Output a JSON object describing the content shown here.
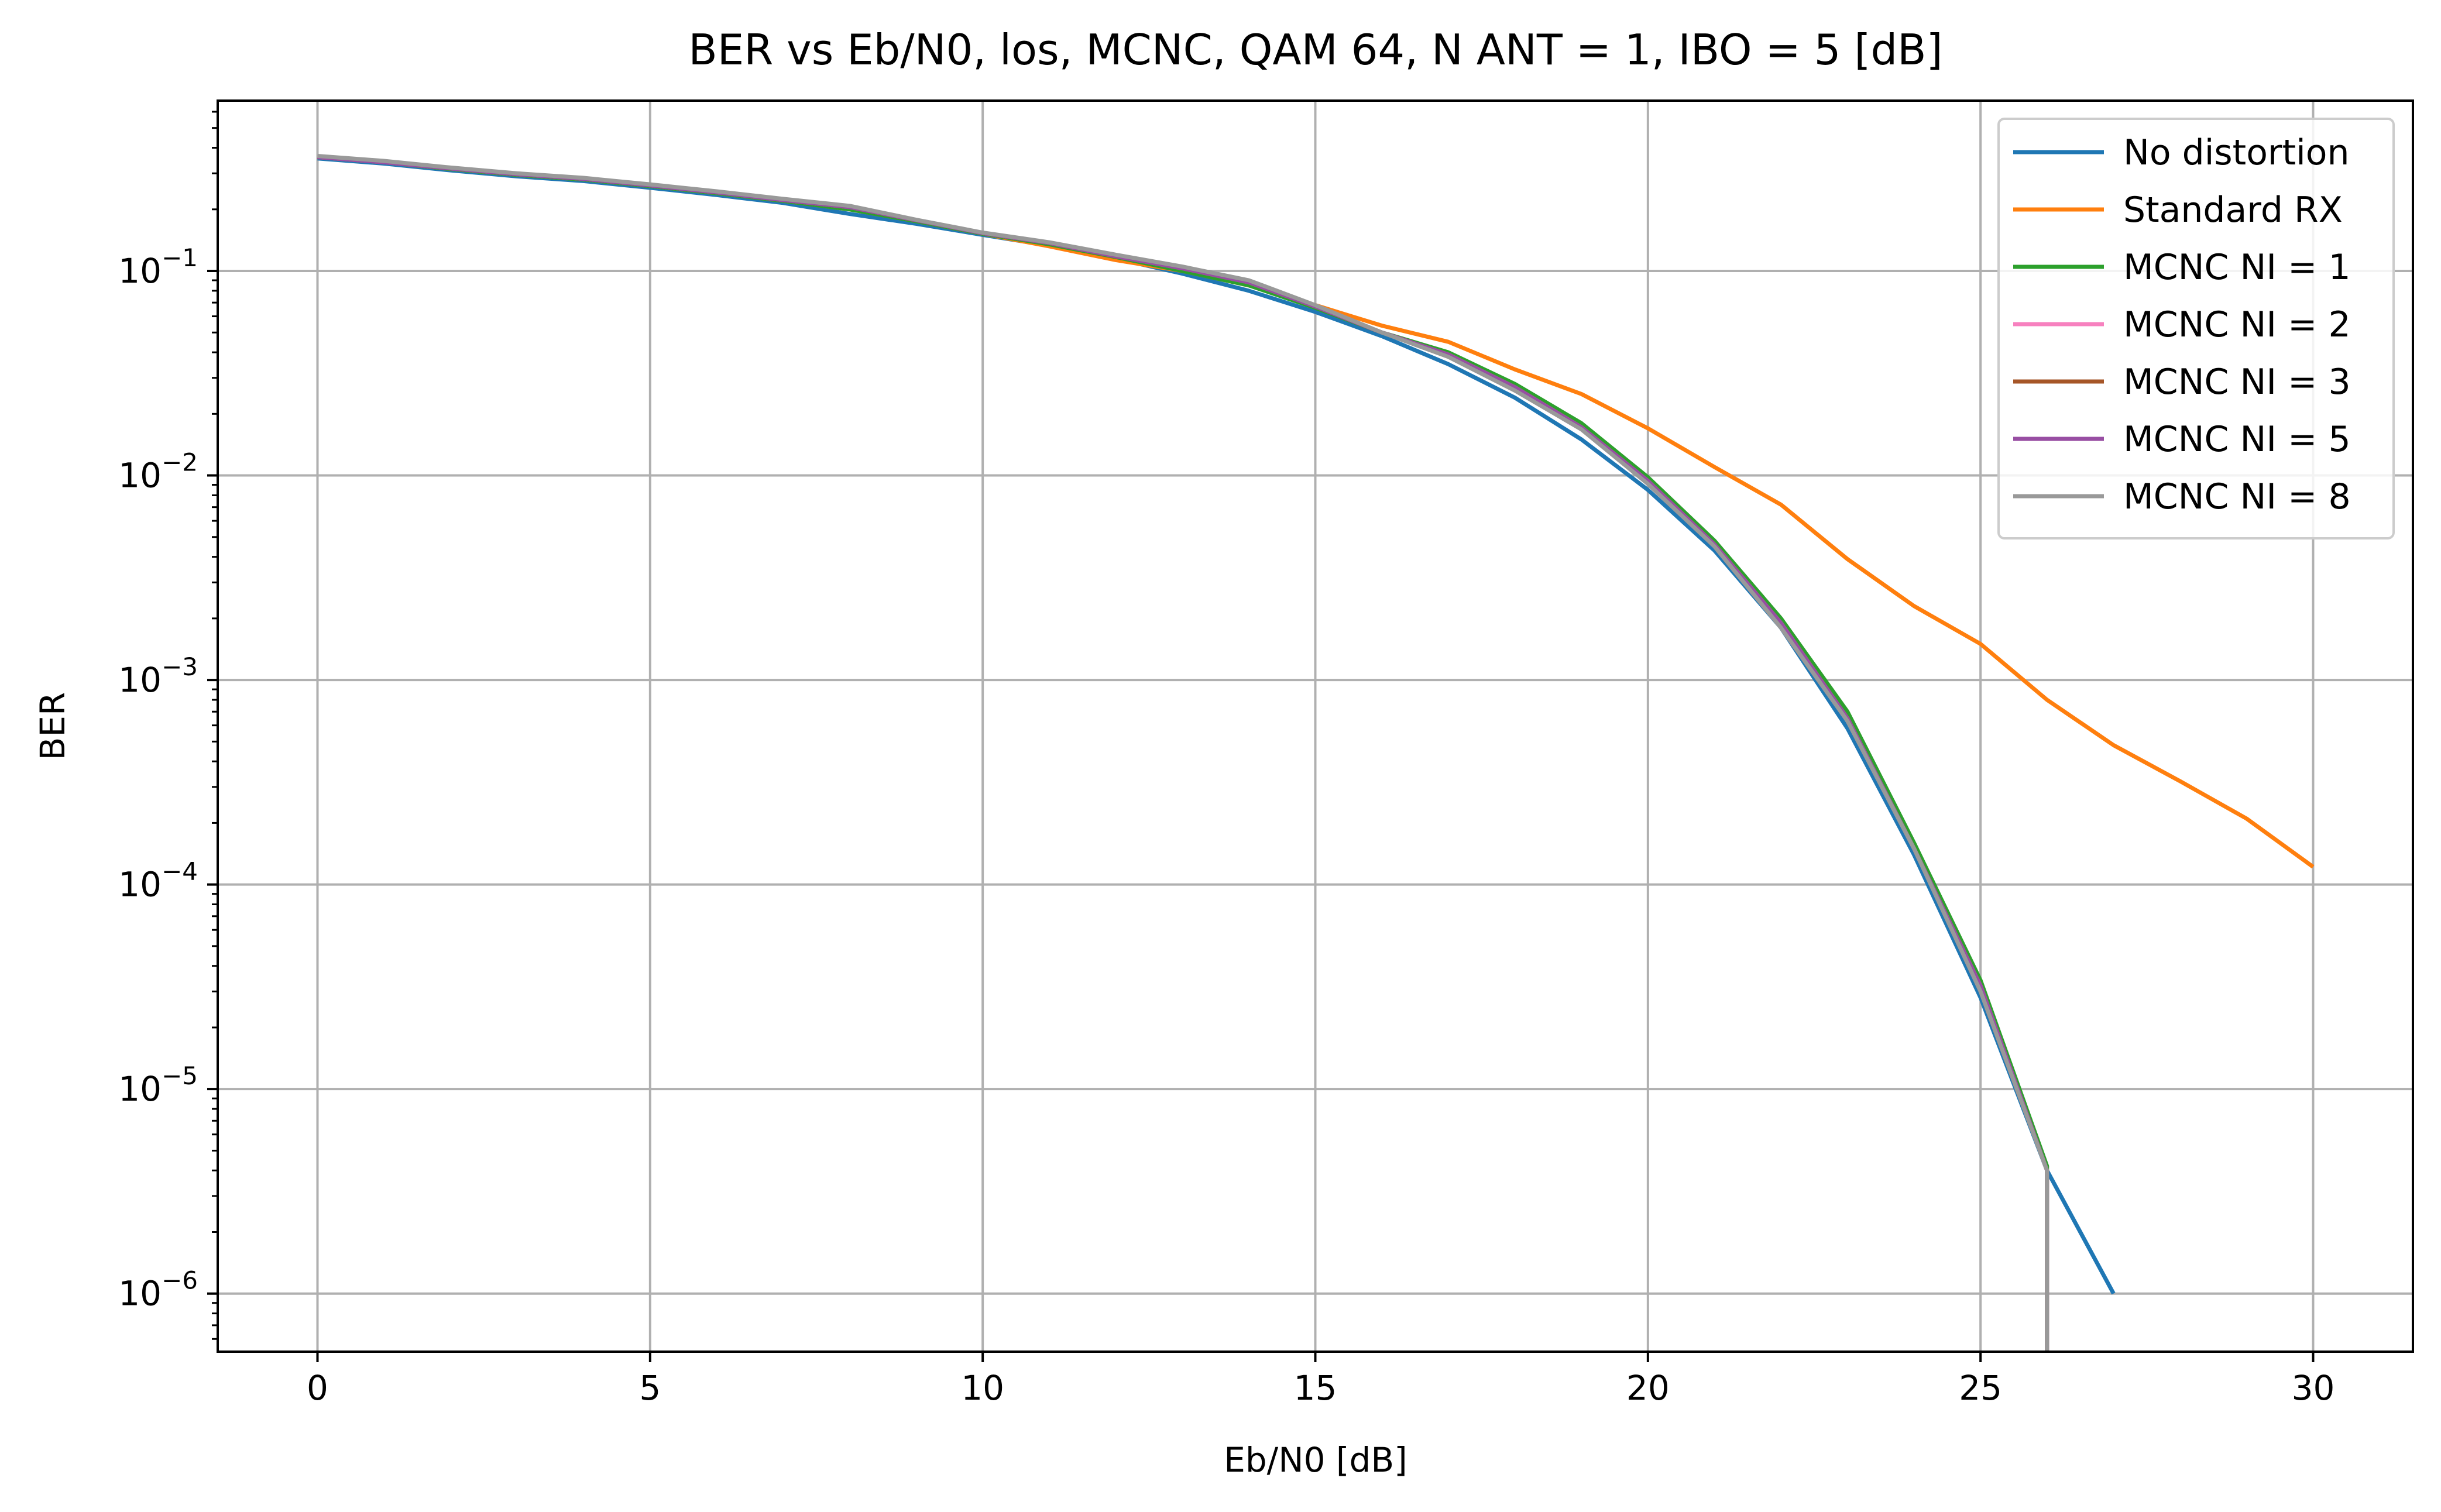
{
  "chart_data": {
    "type": "line",
    "title": "BER vs Eb/N0, los, MCNC, QAM 64, N ANT = 1, IBO = 5 [dB]",
    "xlabel": "Eb/N0 [dB]",
    "ylabel": "BER",
    "y_scale": "log",
    "xlim": [
      -1.5,
      31.5
    ],
    "ylim": [
      5.2e-07,
      0.68
    ],
    "x_ticks": [
      0,
      5,
      10,
      15,
      20,
      25,
      30
    ],
    "y_ticks": [
      {
        "value": 0.1,
        "base": "10",
        "exp": "−1"
      },
      {
        "value": 0.01,
        "base": "10",
        "exp": "−2"
      },
      {
        "value": 0.001,
        "base": "10",
        "exp": "−3"
      },
      {
        "value": 0.0001,
        "base": "10",
        "exp": "−4"
      },
      {
        "value": 1e-05,
        "base": "10",
        "exp": "−5"
      },
      {
        "value": 1e-06,
        "base": "10",
        "exp": "−6"
      }
    ],
    "grid": true,
    "legend_position": "top-right",
    "series": [
      {
        "name": "No distortion",
        "color": "#1f77b4",
        "x": [
          0,
          1,
          2,
          3,
          4,
          5,
          6,
          7,
          8,
          9,
          10,
          11,
          12,
          13,
          14,
          15,
          16,
          17,
          18,
          19,
          20,
          21,
          22,
          23,
          24,
          25,
          26,
          27
        ],
        "y": [
          0.355,
          0.335,
          0.31,
          0.29,
          0.275,
          0.255,
          0.235,
          0.215,
          0.19,
          0.17,
          0.15,
          0.133,
          0.115,
          0.097,
          0.08,
          0.063,
          0.048,
          0.035,
          0.024,
          0.015,
          0.0085,
          0.0043,
          0.0018,
          0.00058,
          0.00014,
          2.8e-05,
          4e-06,
          1e-06
        ]
      },
      {
        "name": "Standard RX",
        "color": "#ff7f0e",
        "x": [
          0,
          1,
          2,
          3,
          4,
          5,
          6,
          7,
          8,
          9,
          10,
          11,
          12,
          13,
          14,
          15,
          16,
          17,
          18,
          19,
          20,
          21,
          22,
          23,
          24,
          25,
          26,
          27,
          28,
          29,
          30
        ],
        "y": [
          0.36,
          0.34,
          0.315,
          0.295,
          0.28,
          0.26,
          0.24,
          0.22,
          0.2,
          0.175,
          0.152,
          0.132,
          0.113,
          0.1,
          0.085,
          0.068,
          0.054,
          0.045,
          0.033,
          0.025,
          0.017,
          0.011,
          0.0072,
          0.0039,
          0.0023,
          0.0015,
          0.0008,
          0.00048,
          0.00032,
          0.00021,
          0.000122
        ]
      },
      {
        "name": "MCNC NI = 1",
        "color": "#2ca02c",
        "x": [
          0,
          1,
          2,
          3,
          4,
          5,
          6,
          7,
          8,
          9,
          10,
          11,
          12,
          13,
          14,
          15,
          16,
          17,
          18,
          19,
          20,
          21,
          22,
          23,
          24,
          25,
          26,
          26
        ],
        "y": [
          0.36,
          0.34,
          0.315,
          0.295,
          0.28,
          0.26,
          0.24,
          0.22,
          0.2,
          0.175,
          0.152,
          0.135,
          0.117,
          0.1,
          0.085,
          0.066,
          0.05,
          0.04,
          0.028,
          0.018,
          0.0098,
          0.0048,
          0.002,
          0.0007,
          0.00016,
          3.4e-05,
          4.2e-06,
          4e-07
        ]
      },
      {
        "name": "MCNC NI = 2",
        "color": "#f781bf",
        "x": [
          0,
          1,
          2,
          3,
          4,
          5,
          6,
          7,
          8,
          9,
          10,
          11,
          12,
          13,
          14,
          15,
          16,
          17,
          18,
          19,
          20,
          21,
          22,
          23,
          24,
          25,
          26,
          26
        ],
        "y": [
          0.36,
          0.34,
          0.317,
          0.297,
          0.282,
          0.262,
          0.242,
          0.222,
          0.205,
          0.177,
          0.153,
          0.137,
          0.118,
          0.103,
          0.088,
          0.067,
          0.05,
          0.039,
          0.027,
          0.0172,
          0.0094,
          0.0046,
          0.0019,
          0.00065,
          0.00015,
          3.2e-05,
          4e-06,
          4e-07
        ]
      },
      {
        "name": "MCNC NI = 3",
        "color": "#a65628",
        "x": [
          0,
          1,
          2,
          3,
          4,
          5,
          6,
          7,
          8,
          9,
          10,
          11,
          12,
          13,
          14,
          15,
          16,
          17,
          18,
          19,
          20,
          21,
          22,
          23,
          24,
          25,
          26,
          26
        ],
        "y": [
          0.36,
          0.34,
          0.317,
          0.297,
          0.282,
          0.262,
          0.242,
          0.222,
          0.205,
          0.177,
          0.153,
          0.137,
          0.118,
          0.103,
          0.088,
          0.067,
          0.05,
          0.039,
          0.027,
          0.0172,
          0.0094,
          0.0046,
          0.0019,
          0.00065,
          0.00015,
          3.2e-05,
          4e-06,
          4e-07
        ]
      },
      {
        "name": "MCNC NI = 5",
        "color": "#984ea3",
        "x": [
          0,
          1,
          2,
          3,
          4,
          5,
          6,
          7,
          8,
          9,
          10,
          11,
          12,
          13,
          14,
          15,
          16,
          17,
          18,
          19,
          20,
          21,
          22,
          23,
          24,
          25,
          26,
          26
        ],
        "y": [
          0.36,
          0.34,
          0.317,
          0.297,
          0.282,
          0.262,
          0.242,
          0.222,
          0.205,
          0.177,
          0.153,
          0.137,
          0.118,
          0.103,
          0.088,
          0.067,
          0.05,
          0.039,
          0.027,
          0.0172,
          0.0094,
          0.0046,
          0.0019,
          0.00065,
          0.00015,
          3.2e-05,
          4e-06,
          4e-07
        ]
      },
      {
        "name": "MCNC NI = 8",
        "color": "#999999",
        "x": [
          0,
          1,
          2,
          3,
          4,
          5,
          6,
          7,
          8,
          9,
          10,
          11,
          12,
          13,
          14,
          15,
          16,
          17,
          18,
          19,
          20,
          21,
          22,
          23,
          24,
          25,
          26,
          26
        ],
        "y": [
          0.365,
          0.345,
          0.32,
          0.3,
          0.285,
          0.265,
          0.245,
          0.225,
          0.208,
          0.178,
          0.154,
          0.138,
          0.12,
          0.105,
          0.09,
          0.068,
          0.05,
          0.038,
          0.026,
          0.0168,
          0.0091,
          0.0045,
          0.0018,
          0.00063,
          0.00015,
          3e-05,
          4e-06,
          4e-07
        ]
      }
    ]
  }
}
